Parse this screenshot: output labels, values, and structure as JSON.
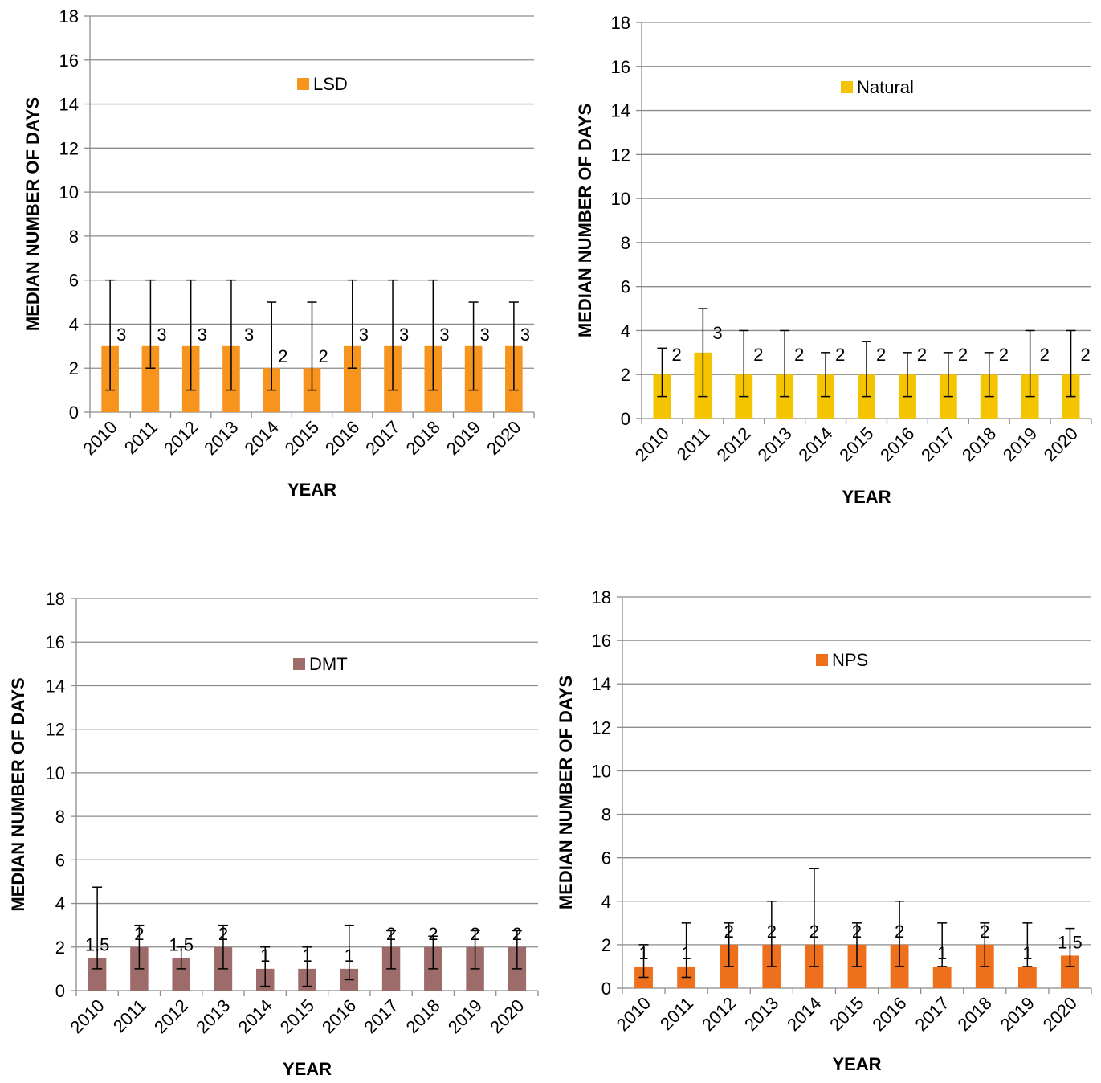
{
  "chart_data": [
    {
      "type": "bar",
      "categories": [
        "2010",
        "2011",
        "2012",
        "2013",
        "2014",
        "2015",
        "2016",
        "2017",
        "2018",
        "2019",
        "2020"
      ],
      "series": [
        {
          "name": "LSD",
          "values": [
            3,
            3,
            3,
            3,
            2,
            2,
            3,
            3,
            3,
            3,
            3
          ]
        }
      ],
      "error_bars": {
        "low": [
          1,
          2,
          1,
          1,
          1,
          1,
          2,
          1,
          1,
          1,
          1
        ],
        "high": [
          6,
          6,
          6,
          6,
          5,
          5,
          6,
          6,
          6,
          5,
          5
        ]
      },
      "data_labels": [
        "3",
        "3",
        "3",
        "3",
        "2",
        "2",
        "3",
        "3",
        "3",
        "3",
        "3"
      ],
      "xlabel": "YEAR",
      "ylabel": "MEDIAN NUMBER OF DAYS",
      "ylim": [
        0,
        18
      ],
      "yticks": [
        "0",
        "2",
        "4",
        "6",
        "8",
        "10",
        "12",
        "14",
        "16",
        "18"
      ],
      "grid": true,
      "legend": "top-center",
      "color": "#f7941d"
    },
    {
      "type": "bar",
      "categories": [
        "2010",
        "2011",
        "2012",
        "2013",
        "2014",
        "2015",
        "2016",
        "2017",
        "2018",
        "2019",
        "2020"
      ],
      "series": [
        {
          "name": "Natural",
          "values": [
            2,
            3,
            2,
            2,
            2,
            2,
            2,
            2,
            2,
            2,
            2
          ]
        }
      ],
      "error_bars": {
        "low": [
          1,
          1,
          1,
          1,
          1,
          1,
          1,
          1,
          1,
          1,
          1
        ],
        "high": [
          3.2,
          5,
          4,
          4,
          3,
          3.5,
          3,
          3,
          3,
          4,
          4
        ]
      },
      "data_labels": [
        "2",
        "3",
        "2",
        "2",
        "2",
        "2",
        "2",
        "2",
        "2",
        "2",
        "2"
      ],
      "xlabel": "YEAR",
      "ylabel": "MEDIAN NUMBER OF DAYS",
      "ylim": [
        0,
        18
      ],
      "yticks": [
        "0",
        "2",
        "4",
        "6",
        "8",
        "10",
        "12",
        "14",
        "16",
        "18"
      ],
      "grid": true,
      "legend": "top-center",
      "color": "#f5c400"
    },
    {
      "type": "bar",
      "categories": [
        "2010",
        "2011",
        "2012",
        "2013",
        "2014",
        "2015",
        "2016",
        "2017",
        "2018",
        "2019",
        "2020"
      ],
      "series": [
        {
          "name": "DMT",
          "values": [
            1.5,
            2,
            1.5,
            2,
            1,
            1,
            1,
            2,
            2,
            2,
            2
          ]
        }
      ],
      "error_bars": {
        "low": [
          1,
          1,
          1,
          1,
          0.2,
          0.2,
          0.5,
          1,
          1,
          1,
          1
        ],
        "high": [
          4.75,
          3,
          2,
          3,
          2,
          2,
          3,
          2.75,
          2.5,
          2.75,
          2.75
        ]
      },
      "data_labels": [
        "1.5",
        "2",
        "1.5",
        "2",
        "1",
        "1",
        "1",
        "2",
        "2",
        "2",
        "2"
      ],
      "xlabel": "YEAR",
      "ylabel": "MEDIAN NUMBER OF DAYS",
      "ylim": [
        0,
        18
      ],
      "yticks": [
        "0",
        "2",
        "4",
        "6",
        "8",
        "10",
        "12",
        "14",
        "16",
        "18"
      ],
      "grid": true,
      "legend": "top-center",
      "color": "#9e6b6b"
    },
    {
      "type": "bar",
      "categories": [
        "2010",
        "2011",
        "2012",
        "2013",
        "2014",
        "2015",
        "2016",
        "2017",
        "2018",
        "2019",
        "2020"
      ],
      "series": [
        {
          "name": "NPS",
          "values": [
            1,
            1,
            2,
            2,
            2,
            2,
            2,
            1,
            2,
            1,
            1.5
          ]
        }
      ],
      "error_bars": {
        "low": [
          0.5,
          0.5,
          1,
          1,
          1,
          1,
          1,
          1,
          1,
          1,
          1
        ],
        "high": [
          2,
          3,
          3,
          4,
          5.5,
          3,
          4,
          3,
          3,
          3,
          2.75
        ]
      },
      "data_labels": [
        "1",
        "1",
        "2",
        "2",
        "2",
        "2",
        "2",
        "1",
        "2",
        "1",
        "1.5"
      ],
      "xlabel": "YEAR",
      "ylabel": "MEDIAN NUMBER OF DAYS",
      "ylim": [
        0,
        18
      ],
      "yticks": [
        "0",
        "2",
        "4",
        "6",
        "8",
        "10",
        "12",
        "14",
        "16",
        "18"
      ],
      "grid": true,
      "legend": "top-center",
      "color": "#ee6f1c"
    }
  ]
}
